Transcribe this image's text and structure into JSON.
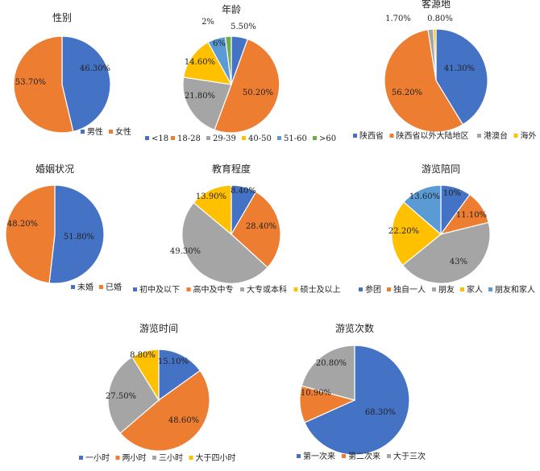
{
  "colors": [
    "#4472C4",
    "#ED7D31",
    "#A5A5A5",
    "#FFC000",
    "#5B9BD5",
    "#70AD47"
  ],
  "chart_data": [
    {
      "type": "pie",
      "title": "性别",
      "categories": [
        "男性",
        "女性"
      ],
      "values": [
        46.3,
        53.7
      ],
      "labels": [
        "46.30%",
        "53.70%"
      ],
      "legend": "bottom"
    },
    {
      "type": "pie",
      "title": "年龄",
      "categories": [
        "<18",
        "18-28",
        "29-39",
        "40-50",
        "51-60",
        ">60"
      ],
      "values": [
        5.5,
        50.2,
        21.8,
        14.6,
        6,
        2
      ],
      "labels": [
        "5.50%",
        "50.20%",
        "21.80%",
        "14.60%",
        "6%",
        "2%"
      ],
      "legend": "bottom"
    },
    {
      "type": "pie",
      "title": "客源地",
      "categories": [
        "陕西省",
        "陕西省以外大陆地区",
        "港澳台",
        "海外"
      ],
      "values": [
        41.3,
        56.2,
        1.7,
        0.8
      ],
      "labels": [
        "41.30%",
        "56.20%",
        "1.70%",
        "0.80%"
      ],
      "legend": "bottom"
    },
    {
      "type": "pie",
      "title": "婚姻状况",
      "categories": [
        "未婚",
        "已婚"
      ],
      "values": [
        51.8,
        48.2
      ],
      "labels": [
        "51.80%",
        "48.20%"
      ],
      "legend": "bottom"
    },
    {
      "type": "pie",
      "title": "教育程度",
      "categories": [
        "初中及以下",
        "高中及中专",
        "大专或本科",
        "硕士及以上"
      ],
      "values": [
        8.4,
        28.4,
        49.3,
        13.9
      ],
      "labels": [
        "8.40%",
        "28.40%",
        "49.30%",
        "13.90%"
      ],
      "legend": "bottom"
    },
    {
      "type": "pie",
      "title": "游览陪同",
      "categories": [
        "参团",
        "独自一人",
        "朋友",
        "家人",
        "朋友和家人"
      ],
      "values": [
        10,
        11.1,
        43,
        22.2,
        13.6
      ],
      "labels": [
        "10%",
        "11.10%",
        "43%",
        "22.20%",
        "13.60%"
      ],
      "legend": "bottom"
    },
    {
      "type": "pie",
      "title": "游览时间",
      "categories": [
        "一小时",
        "两小时",
        "三小时",
        "大于四小时"
      ],
      "values": [
        15.1,
        48.6,
        27.5,
        8.8
      ],
      "labels": [
        "15.10%",
        "48.60%",
        "27.50%",
        "8.80%"
      ],
      "legend": "bottom"
    },
    {
      "type": "pie",
      "title": "游览次数",
      "categories": [
        "第一次来",
        "第二次来",
        "大于三次"
      ],
      "values": [
        68.3,
        10.9,
        20.8
      ],
      "labels": [
        "68.30%",
        "10.90%",
        "20.80%"
      ],
      "legend": "bottom"
    }
  ]
}
